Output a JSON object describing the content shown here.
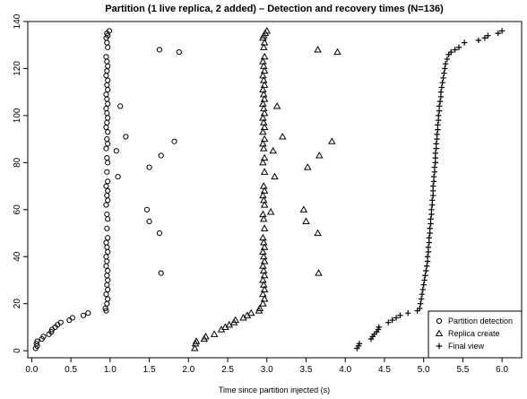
{
  "chart_data": {
    "type": "scatter",
    "title": "Partition (1 live replica, 2 added) – Detection and recovery times (N=136)",
    "xlabel": "Time since partition injected (s)",
    "ylabel": "",
    "xlim": [
      -0.05,
      6.25
    ],
    "ylim": [
      -3,
      140
    ],
    "x_ticks": [
      "0.0",
      "0.5",
      "1.0",
      "1.5",
      "2.0",
      "2.5",
      "3.0",
      "3.5",
      "4.0",
      "4.5",
      "5.0",
      "5.5",
      "6.0"
    ],
    "y_ticks": [
      "0",
      "20",
      "40",
      "60",
      "80",
      "100",
      "120",
      "140"
    ],
    "grid": false,
    "legend_position": "bottom-right",
    "series": [
      {
        "name": "Partition detection",
        "marker": "circle",
        "points": [
          [
            0.05,
            1
          ],
          [
            0.07,
            2
          ],
          [
            0.06,
            3
          ],
          [
            0.07,
            4
          ],
          [
            0.13,
            5
          ],
          [
            0.15,
            6
          ],
          [
            0.22,
            7
          ],
          [
            0.25,
            8
          ],
          [
            0.26,
            9
          ],
          [
            0.3,
            10
          ],
          [
            0.33,
            11
          ],
          [
            0.37,
            12
          ],
          [
            0.48,
            13
          ],
          [
            0.52,
            14
          ],
          [
            0.66,
            15
          ],
          [
            0.72,
            16
          ],
          [
            0.95,
            17
          ],
          [
            0.94,
            18
          ],
          [
            0.96,
            20
          ],
          [
            0.97,
            22
          ],
          [
            0.95,
            24
          ],
          [
            0.97,
            26
          ],
          [
            0.96,
            28
          ],
          [
            0.97,
            30
          ],
          [
            0.96,
            32
          ],
          [
            1.65,
            33
          ],
          [
            0.97,
            34
          ],
          [
            0.95,
            36
          ],
          [
            0.96,
            38
          ],
          [
            0.95,
            40
          ],
          [
            0.97,
            42
          ],
          [
            0.96,
            44
          ],
          [
            0.95,
            46
          ],
          [
            0.97,
            48
          ],
          [
            1.63,
            50
          ],
          [
            0.96,
            52
          ],
          [
            1.5,
            55
          ],
          [
            0.97,
            56
          ],
          [
            0.96,
            58
          ],
          [
            1.47,
            60
          ],
          [
            0.95,
            62
          ],
          [
            0.97,
            64
          ],
          [
            0.96,
            66
          ],
          [
            0.97,
            68
          ],
          [
            0.95,
            70
          ],
          [
            0.97,
            72
          ],
          [
            1.1,
            74
          ],
          [
            0.96,
            76
          ],
          [
            1.5,
            78
          ],
          [
            0.97,
            80
          ],
          [
            1.65,
            83
          ],
          [
            0.96,
            82
          ],
          [
            1.08,
            85
          ],
          [
            0.95,
            86
          ],
          [
            0.97,
            88
          ],
          [
            1.82,
            89
          ],
          [
            0.96,
            90
          ],
          [
            1.2,
            91
          ],
          [
            0.97,
            93
          ],
          [
            0.95,
            95
          ],
          [
            0.96,
            97
          ],
          [
            0.97,
            99
          ],
          [
            0.96,
            101
          ],
          [
            0.95,
            103
          ],
          [
            1.13,
            104
          ],
          [
            0.97,
            105
          ],
          [
            0.96,
            107
          ],
          [
            0.95,
            109
          ],
          [
            0.97,
            111
          ],
          [
            0.96,
            113
          ],
          [
            0.97,
            115
          ],
          [
            0.95,
            117
          ],
          [
            0.96,
            119
          ],
          [
            0.97,
            121
          ],
          [
            0.96,
            123
          ],
          [
            0.95,
            125
          ],
          [
            1.88,
            127
          ],
          [
            1.63,
            128
          ],
          [
            0.97,
            129
          ],
          [
            0.96,
            131
          ],
          [
            0.95,
            133
          ],
          [
            0.97,
            134
          ],
          [
            0.96,
            135
          ],
          [
            0.99,
            136
          ]
        ]
      },
      {
        "name": "Replica create",
        "marker": "triangle",
        "points": [
          [
            2.08,
            1
          ],
          [
            2.09,
            3
          ],
          [
            2.1,
            4
          ],
          [
            2.2,
            5
          ],
          [
            2.22,
            6
          ],
          [
            2.33,
            7
          ],
          [
            2.42,
            9
          ],
          [
            2.47,
            10
          ],
          [
            2.52,
            11
          ],
          [
            2.58,
            12
          ],
          [
            2.6,
            13
          ],
          [
            2.7,
            14
          ],
          [
            2.75,
            15
          ],
          [
            2.8,
            16
          ],
          [
            2.9,
            17
          ],
          [
            2.91,
            18
          ],
          [
            2.95,
            20
          ],
          [
            2.97,
            22
          ],
          [
            2.95,
            24
          ],
          [
            2.97,
            26
          ],
          [
            2.96,
            28
          ],
          [
            2.95,
            30
          ],
          [
            2.97,
            32
          ],
          [
            3.66,
            33
          ],
          [
            2.96,
            34
          ],
          [
            2.95,
            36
          ],
          [
            2.97,
            38
          ],
          [
            2.96,
            40
          ],
          [
            2.95,
            42
          ],
          [
            2.97,
            44
          ],
          [
            2.96,
            46
          ],
          [
            2.95,
            48
          ],
          [
            3.65,
            50
          ],
          [
            2.97,
            52
          ],
          [
            3.5,
            55
          ],
          [
            2.96,
            56
          ],
          [
            2.95,
            58
          ],
          [
            3.47,
            60
          ],
          [
            3.05,
            59
          ],
          [
            2.97,
            62
          ],
          [
            2.96,
            64
          ],
          [
            2.95,
            66
          ],
          [
            2.97,
            68
          ],
          [
            2.96,
            70
          ],
          [
            3.1,
            74
          ],
          [
            2.97,
            76
          ],
          [
            3.52,
            78
          ],
          [
            2.95,
            80
          ],
          [
            3.67,
            83
          ],
          [
            2.97,
            82
          ],
          [
            3.08,
            85
          ],
          [
            2.96,
            86
          ],
          [
            2.95,
            88
          ],
          [
            3.83,
            89
          ],
          [
            2.97,
            90
          ],
          [
            3.2,
            91
          ],
          [
            2.95,
            93
          ],
          [
            2.97,
            95
          ],
          [
            2.96,
            97
          ],
          [
            2.95,
            99
          ],
          [
            2.97,
            101
          ],
          [
            2.96,
            103
          ],
          [
            3.13,
            104
          ],
          [
            2.95,
            105
          ],
          [
            2.97,
            107
          ],
          [
            2.96,
            109
          ],
          [
            2.95,
            111
          ],
          [
            2.97,
            113
          ],
          [
            2.96,
            115
          ],
          [
            2.95,
            117
          ],
          [
            2.97,
            119
          ],
          [
            2.96,
            121
          ],
          [
            2.95,
            123
          ],
          [
            2.97,
            125
          ],
          [
            3.9,
            127
          ],
          [
            3.65,
            128
          ],
          [
            2.96,
            129
          ],
          [
            2.97,
            131
          ],
          [
            2.95,
            133
          ],
          [
            2.96,
            134
          ],
          [
            2.98,
            135
          ],
          [
            3.0,
            136
          ]
        ]
      },
      {
        "name": "Final view",
        "marker": "plus",
        "points": [
          [
            4.15,
            1
          ],
          [
            4.17,
            2
          ],
          [
            4.18,
            3
          ],
          [
            4.33,
            5
          ],
          [
            4.35,
            6
          ],
          [
            4.37,
            7
          ],
          [
            4.4,
            8
          ],
          [
            4.42,
            9
          ],
          [
            4.43,
            10
          ],
          [
            4.55,
            12
          ],
          [
            4.6,
            13
          ],
          [
            4.65,
            14
          ],
          [
            4.7,
            15
          ],
          [
            4.8,
            16
          ],
          [
            4.92,
            17
          ],
          [
            4.95,
            18
          ],
          [
            4.96,
            20
          ],
          [
            4.97,
            22
          ],
          [
            4.98,
            24
          ],
          [
            4.99,
            26
          ],
          [
            5.0,
            28
          ],
          [
            5.01,
            30
          ],
          [
            5.02,
            32
          ],
          [
            5.03,
            34
          ],
          [
            5.04,
            36
          ],
          [
            5.05,
            38
          ],
          [
            5.05,
            40
          ],
          [
            5.06,
            42
          ],
          [
            5.06,
            44
          ],
          [
            5.07,
            46
          ],
          [
            5.07,
            48
          ],
          [
            5.08,
            50
          ],
          [
            5.08,
            52
          ],
          [
            5.09,
            54
          ],
          [
            5.09,
            56
          ],
          [
            5.1,
            58
          ],
          [
            5.1,
            60
          ],
          [
            5.11,
            62
          ],
          [
            5.11,
            64
          ],
          [
            5.12,
            66
          ],
          [
            5.12,
            68
          ],
          [
            5.12,
            70
          ],
          [
            5.13,
            72
          ],
          [
            5.13,
            74
          ],
          [
            5.14,
            76
          ],
          [
            5.14,
            78
          ],
          [
            5.15,
            80
          ],
          [
            5.15,
            82
          ],
          [
            5.15,
            84
          ],
          [
            5.16,
            86
          ],
          [
            5.16,
            88
          ],
          [
            5.17,
            90
          ],
          [
            5.17,
            92
          ],
          [
            5.18,
            94
          ],
          [
            5.18,
            96
          ],
          [
            5.19,
            98
          ],
          [
            5.19,
            100
          ],
          [
            5.2,
            102
          ],
          [
            5.2,
            104
          ],
          [
            5.21,
            106
          ],
          [
            5.22,
            108
          ],
          [
            5.22,
            110
          ],
          [
            5.23,
            112
          ],
          [
            5.24,
            114
          ],
          [
            5.25,
            116
          ],
          [
            5.26,
            118
          ],
          [
            5.27,
            120
          ],
          [
            5.28,
            122
          ],
          [
            5.3,
            124
          ],
          [
            5.32,
            126
          ],
          [
            5.35,
            127
          ],
          [
            5.4,
            128
          ],
          [
            5.45,
            129
          ],
          [
            5.52,
            131
          ],
          [
            5.7,
            132
          ],
          [
            5.78,
            133
          ],
          [
            5.82,
            134
          ],
          [
            5.95,
            135
          ],
          [
            6.0,
            136
          ]
        ]
      }
    ]
  }
}
